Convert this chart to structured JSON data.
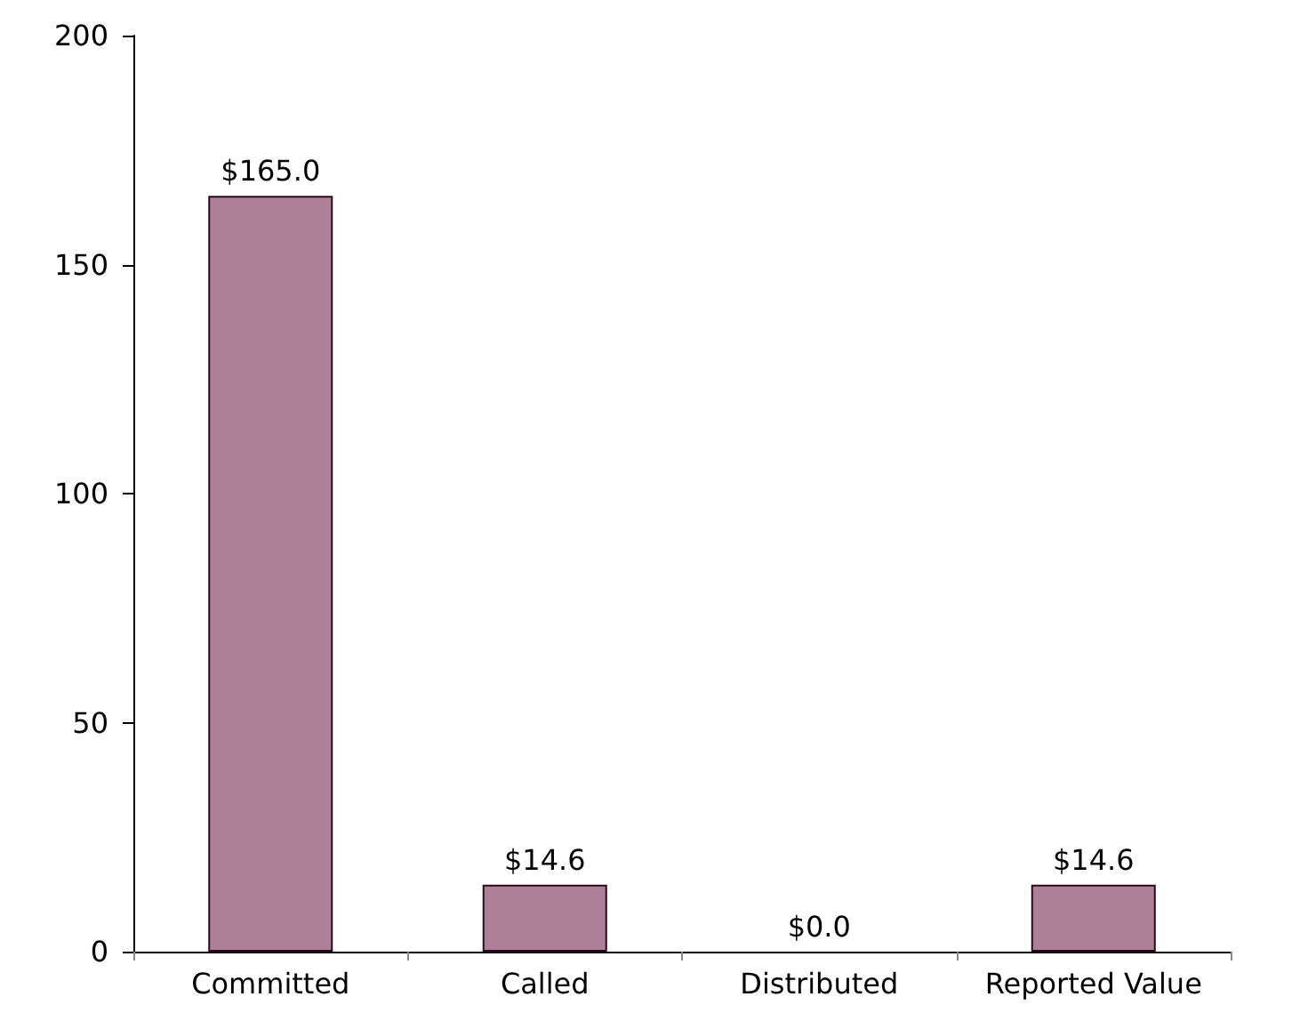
{
  "chart_data": {
    "type": "bar",
    "categories": [
      "Committed",
      "Called",
      "Distributed",
      "Reported Value"
    ],
    "values": [
      165.0,
      14.6,
      0.0,
      14.6
    ],
    "value_labels": [
      "$165.0",
      "$14.6",
      "$0.0",
      "$14.6"
    ],
    "color": "#ae8098",
    "ylim": [
      0,
      200
    ],
    "yticks": [
      0,
      50,
      100,
      150,
      200
    ],
    "grid": false
  }
}
